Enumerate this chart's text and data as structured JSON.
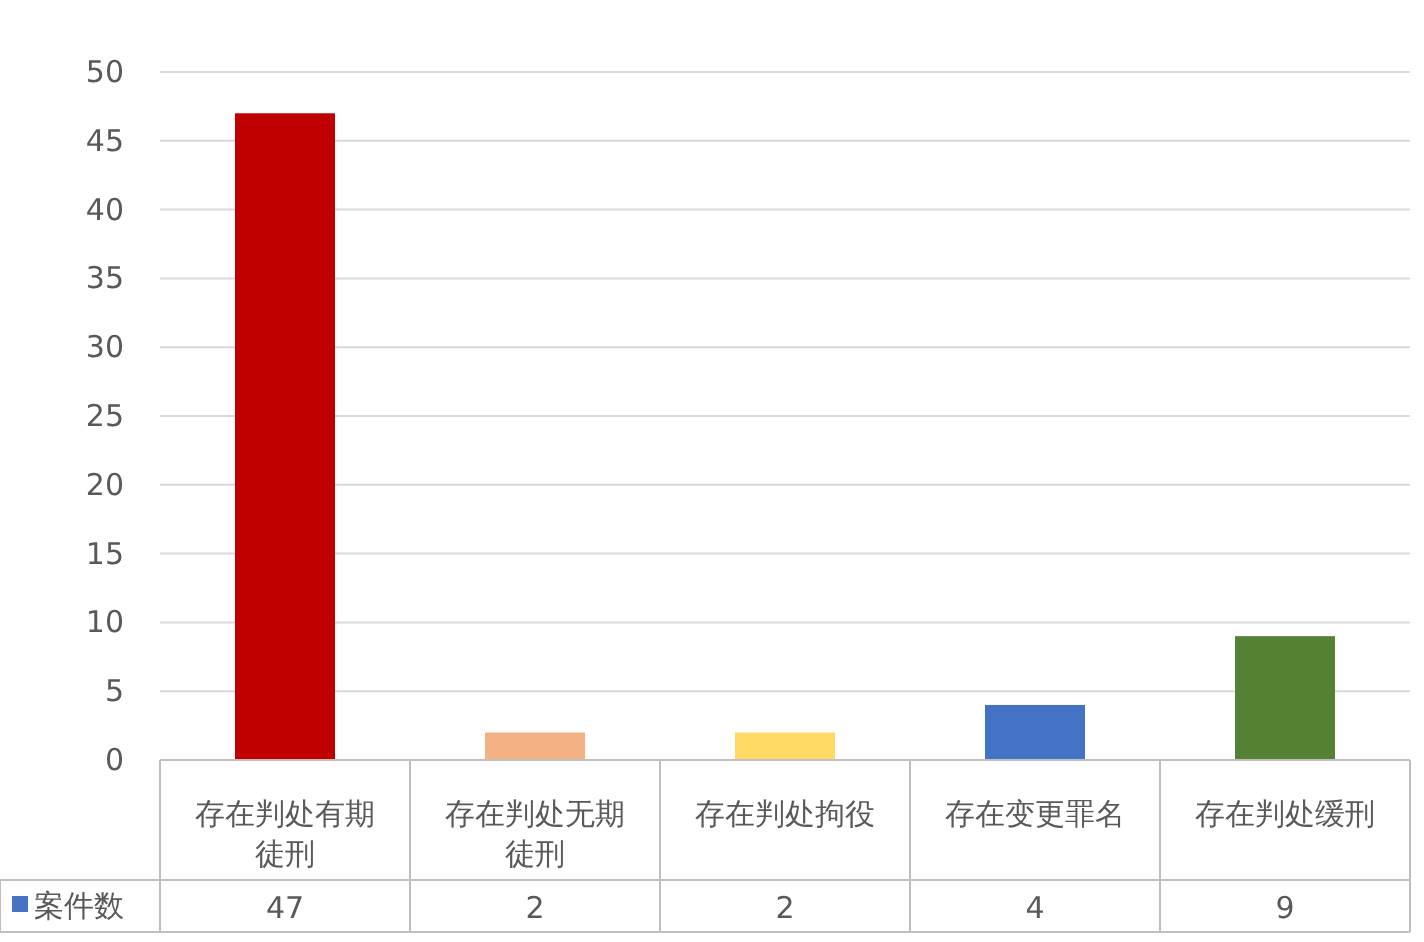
{
  "chart_data": {
    "type": "bar",
    "categories": [
      "存在判处有期徒刑",
      "存在判处无期徒刑",
      "存在判处拘役",
      "存在变更罪名",
      "存在判处缓刑"
    ],
    "series": [
      {
        "name": "案件数",
        "color": "#4472c4",
        "colors": [
          "#c00000",
          "#f4b183",
          "#ffd966",
          "#4472c4",
          "#548235"
        ],
        "values": [
          47,
          2,
          2,
          4,
          9
        ]
      }
    ],
    "ylim": [
      0,
      50
    ],
    "yticks": [
      0,
      5,
      10,
      15,
      20,
      25,
      30,
      35,
      40,
      45,
      50
    ],
    "grid": "y",
    "data_labels": true,
    "legend": "bottom"
  }
}
